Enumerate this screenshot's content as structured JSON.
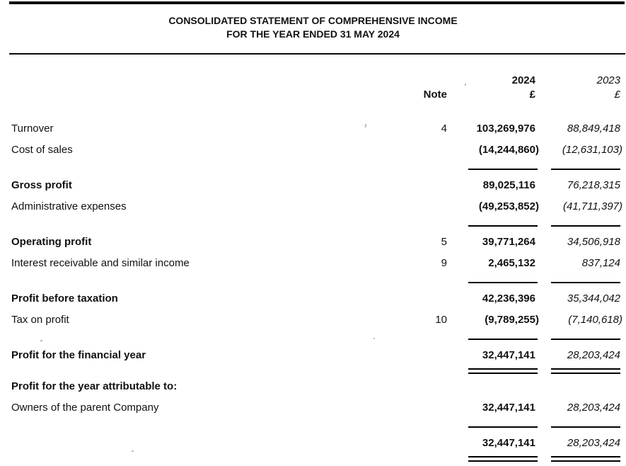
{
  "title": {
    "line1": "CONSOLIDATED STATEMENT OF COMPREHENSIVE INCOME",
    "line2": "FOR THE YEAR ENDED 31 MAY 2024"
  },
  "columns": {
    "note": "Note",
    "year_2024": "2024",
    "year_2023": "2023",
    "currency_2024": "£",
    "currency_2023": "£"
  },
  "rows": [
    {
      "kind": "item",
      "label": "Turnover",
      "note": "4",
      "v2024": "103,269,976",
      "v2023": "88,849,418"
    },
    {
      "kind": "item",
      "label": "Cost of sales",
      "v2024": "(14,244,860)",
      "v2023": "(12,631,103)"
    },
    {
      "kind": "rule"
    },
    {
      "kind": "item",
      "label": "Gross profit",
      "bold": true,
      "v2024": "89,025,116",
      "v2023": "76,218,315"
    },
    {
      "kind": "item",
      "label": "Administrative expenses",
      "v2024": "(49,253,852)",
      "v2023": "(41,711,397)"
    },
    {
      "kind": "rule"
    },
    {
      "kind": "item",
      "label": "Operating profit",
      "bold": true,
      "note": "5",
      "v2024": "39,771,264",
      "v2023": "34,506,918"
    },
    {
      "kind": "item",
      "label": "Interest receivable and similar income",
      "note": "9",
      "v2024": "2,465,132",
      "v2023": "837,124"
    },
    {
      "kind": "rule"
    },
    {
      "kind": "item",
      "label": "Profit before taxation",
      "bold": true,
      "v2024": "42,236,396",
      "v2023": "35,344,042"
    },
    {
      "kind": "item",
      "label": "Tax on profit",
      "note": "10",
      "v2024": "(9,789,255)",
      "v2023": "(7,140,618)"
    },
    {
      "kind": "rule"
    },
    {
      "kind": "item",
      "label": "Profit for the financial year",
      "bold": true,
      "v2024": "32,447,141",
      "v2023": "28,203,424"
    },
    {
      "kind": "double"
    },
    {
      "kind": "item",
      "label": "Profit for the year attributable to:",
      "bold": true
    },
    {
      "kind": "item",
      "label": "Owners of the parent Company",
      "v2024": "32,447,141",
      "v2023": "28,203,424"
    },
    {
      "kind": "rule"
    },
    {
      "kind": "item",
      "v2024": "32,447,141",
      "v2023": "28,203,424"
    },
    {
      "kind": "double"
    }
  ],
  "colors": {
    "text": "#111111",
    "rule": "#000000",
    "background": "#ffffff"
  }
}
